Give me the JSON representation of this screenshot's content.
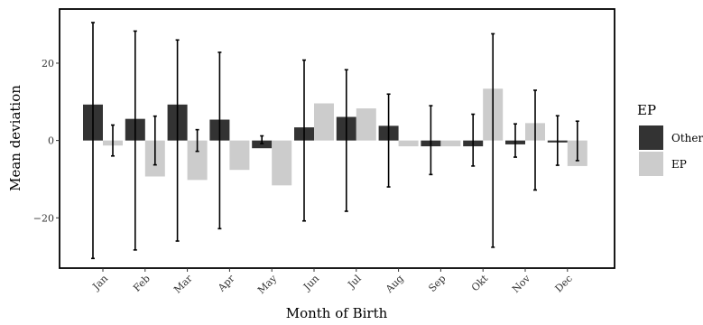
{
  "chart_data": {
    "type": "bar",
    "title": "",
    "xlabel": "Month of Birth",
    "ylabel": "Mean deviation",
    "ylim": [
      -33,
      34
    ],
    "yticks": [
      -20,
      0,
      20
    ],
    "yticklabels": [
      "−20",
      "0",
      "20"
    ],
    "grid": false,
    "legend": {
      "title": "EP",
      "placement": "right"
    },
    "categories": [
      "Jan",
      "Feb",
      "Mar",
      "Apr",
      "May",
      "Jun",
      "Jul",
      "Aug",
      "Sep",
      "Okt",
      "Nov",
      "Dec"
    ],
    "series": [
      {
        "name": "Other",
        "color": "#333333",
        "values": [
          9.3,
          5.6,
          9.3,
          5.4,
          -2.0,
          3.4,
          6.1,
          3.8,
          -1.5,
          -1.5,
          -1.0,
          -0.5
        ],
        "error_low": [
          -30.5,
          -28.3,
          -26.0,
          -22.8,
          -0.8,
          -20.8,
          -18.3,
          -12.0,
          -8.8,
          -6.6,
          -4.3,
          -6.4
        ],
        "error_high": [
          30.5,
          28.3,
          26.0,
          22.8,
          1.2,
          20.8,
          18.3,
          12.0,
          9.0,
          6.8,
          4.3,
          6.4
        ]
      },
      {
        "name": "EP",
        "color": "#cccccc",
        "values": [
          -1.3,
          -9.3,
          -10.2,
          -7.6,
          -11.6,
          9.6,
          8.3,
          -1.5,
          -1.5,
          13.4,
          4.5,
          -6.6
        ],
        "error_low": [
          -4.0,
          -6.3,
          -2.8,
          null,
          null,
          null,
          null,
          null,
          null,
          -27.6,
          -12.8,
          -5.2
        ],
        "error_high": [
          4.0,
          6.3,
          2.8,
          null,
          null,
          null,
          null,
          null,
          null,
          27.6,
          13.0,
          5.0
        ]
      }
    ]
  }
}
